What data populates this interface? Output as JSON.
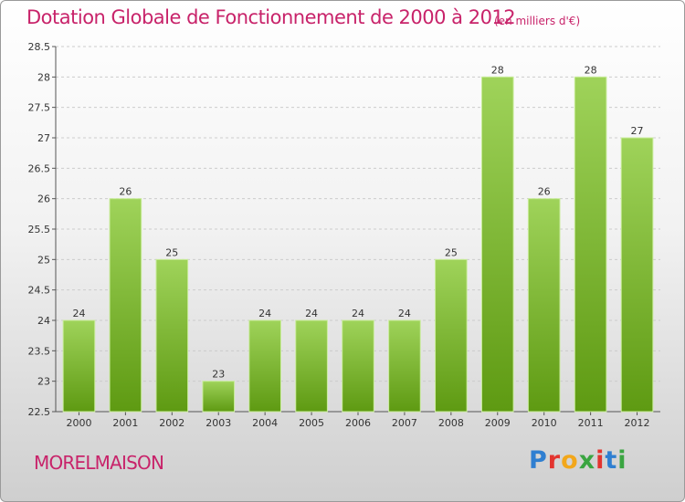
{
  "header": {
    "title": "Dotation Globale de Fonctionnement de 2000 à 2012",
    "subtitle": "(en milliers d'€)"
  },
  "footer": {
    "commune": "MORELMAISON",
    "logo_letters": [
      "P",
      "r",
      "o",
      "x",
      "i",
      "t",
      "i"
    ],
    "logo_colors": [
      "#2f7fd1",
      "#e3342f",
      "#f2a71b",
      "#3aa541",
      "#e3342f",
      "#2f7fd1",
      "#3aa541"
    ]
  },
  "chart_data": {
    "type": "bar",
    "title": "Dotation Globale de Fonctionnement de 2000 à 2012",
    "subtitle": "(en milliers d'€)",
    "categories": [
      "2000",
      "2001",
      "2002",
      "2003",
      "2004",
      "2005",
      "2006",
      "2007",
      "2008",
      "2009",
      "2010",
      "2011",
      "2012"
    ],
    "values": [
      24,
      26,
      25,
      23,
      24,
      24,
      24,
      24,
      25,
      28,
      26,
      28,
      27
    ],
    "data_labels": [
      "24",
      "26",
      "25",
      "23",
      "24",
      "24",
      "24",
      "24",
      "25",
      "28",
      "26",
      "28",
      "27"
    ],
    "xlabel": "",
    "ylabel": "",
    "ylim": [
      22.5,
      28.5
    ],
    "yticks": [
      22.5,
      23,
      23.5,
      24,
      24.5,
      25,
      25.5,
      26,
      26.5,
      27,
      27.5,
      28,
      28.5
    ],
    "ytick_labels": [
      "22.5",
      "23",
      "23.5",
      "24",
      "24.5",
      "25",
      "25.5",
      "26",
      "26.5",
      "27",
      "27.5",
      "28",
      "28.5"
    ],
    "grid": "horizontal-dashed",
    "colors": {
      "bar_top": "#9fd35a",
      "bar_bottom": "#5e9a12",
      "bar_edge": "#c9ec9b",
      "grid": "#cccccc",
      "axis": "#555555"
    }
  }
}
